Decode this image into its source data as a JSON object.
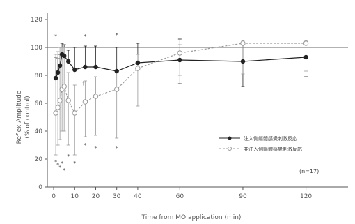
{
  "chart_data": {
    "type": "line",
    "xlabel": "Time from MO application (min)",
    "ylabel_line1": "Reflex Amplitude",
    "ylabel_line2": "(% of control)",
    "xlim": [
      -3,
      140
    ],
    "ylim": [
      0,
      125
    ],
    "x_ticks": [
      0,
      10,
      20,
      30,
      40,
      60,
      90,
      120
    ],
    "y_ticks": [
      0,
      20,
      40,
      60,
      80,
      100,
      120
    ],
    "reference_line": 100,
    "grid": false,
    "legend_position": "lower-right",
    "annotation": "(n=17)",
    "dagger": "†",
    "series": [
      {
        "name": "注入側軀體感覺刺激反応",
        "marker": "filled",
        "color": "#222222",
        "x": [
          1,
          2,
          3,
          4,
          5,
          7,
          10,
          15,
          20,
          30,
          40,
          60,
          90,
          120
        ],
        "y": [
          78,
          82,
          87,
          95,
          94,
          90,
          84,
          86,
          86,
          83,
          89,
          91,
          90,
          93
        ],
        "err_upper": [
          15,
          10,
          8,
          8,
          8,
          8,
          16,
          15,
          15,
          17,
          14,
          15,
          14,
          10
        ],
        "err_lower": [
          0,
          0,
          0,
          0,
          0,
          0,
          0,
          0,
          0,
          0,
          0,
          17,
          18,
          14
        ]
      },
      {
        "name": "非注入側軀體感覺刺激反応",
        "marker": "open",
        "color": "#999999",
        "x": [
          1,
          2,
          3,
          4,
          5,
          7,
          10,
          15,
          20,
          30,
          40,
          60,
          90,
          120
        ],
        "y": [
          53,
          57,
          62,
          70,
          72,
          62,
          53,
          61,
          65,
          70,
          85,
          96,
          103,
          103
        ],
        "err_upper": [
          42,
          40,
          38,
          30,
          28,
          20,
          20,
          15,
          14,
          12,
          10,
          6,
          2,
          2
        ],
        "err_lower": [
          30,
          27,
          28,
          30,
          32,
          32,
          30,
          25,
          28,
          35,
          27,
          16,
          22,
          20
        ]
      }
    ],
    "significance_above": [
      {
        "x": 1,
        "y": 108
      },
      {
        "x": 15,
        "y": 108
      },
      {
        "x": 30,
        "y": 109
      }
    ],
    "significance_below": [
      {
        "x": 1,
        "y": 18
      },
      {
        "x": 2,
        "y": 16
      },
      {
        "x": 3,
        "y": 14
      },
      {
        "x": 4,
        "y": 17
      },
      {
        "x": 5,
        "y": 12
      },
      {
        "x": 7,
        "y": 22
      },
      {
        "x": 10,
        "y": 17
      },
      {
        "x": 15,
        "y": 30
      },
      {
        "x": 20,
        "y": 28
      },
      {
        "x": 30,
        "y": 28
      }
    ]
  }
}
